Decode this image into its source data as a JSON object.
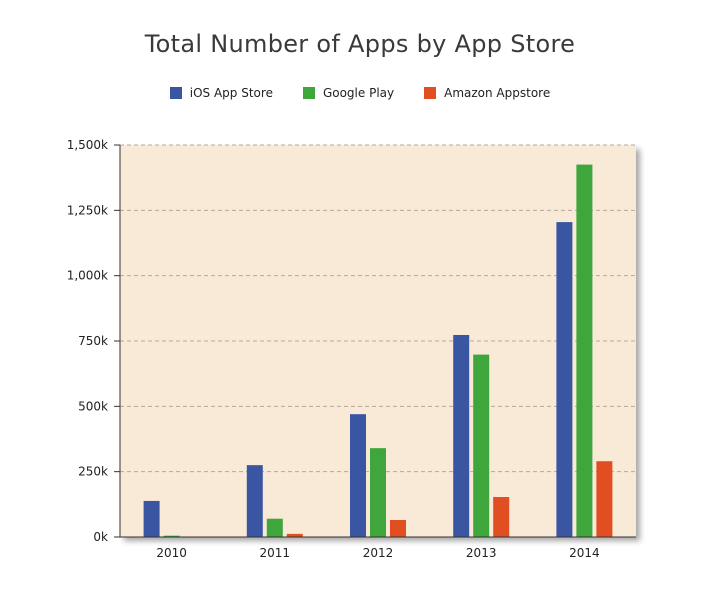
{
  "chart_data": {
    "type": "bar",
    "title": "Total Number of Apps by App Store",
    "categories": [
      "2010",
      "2011",
      "2012",
      "2013",
      "2014"
    ],
    "series": [
      {
        "name": "iOS App Store",
        "color": "#3a56a3",
        "values": [
          138,
          275,
          470,
          773,
          1205
        ]
      },
      {
        "name": "Google Play",
        "color": "#3ea63a",
        "values": [
          5,
          70,
          340,
          698,
          1425
        ]
      },
      {
        "name": "Amazon Appstore",
        "color": "#e04e22",
        "values": [
          0,
          12,
          65,
          153,
          290
        ]
      }
    ],
    "ylim": [
      0,
      1500
    ],
    "yticks": [
      0,
      250,
      500,
      750,
      1000,
      1250,
      1500
    ],
    "ytick_labels": [
      "0k",
      "250k",
      "500k",
      "750k",
      "1,000k",
      "1,250k",
      "1,500k"
    ],
    "xlabel": "",
    "ylabel": "",
    "legend_position": "top-center",
    "grid": true,
    "plot_background": "#f9ead7"
  }
}
